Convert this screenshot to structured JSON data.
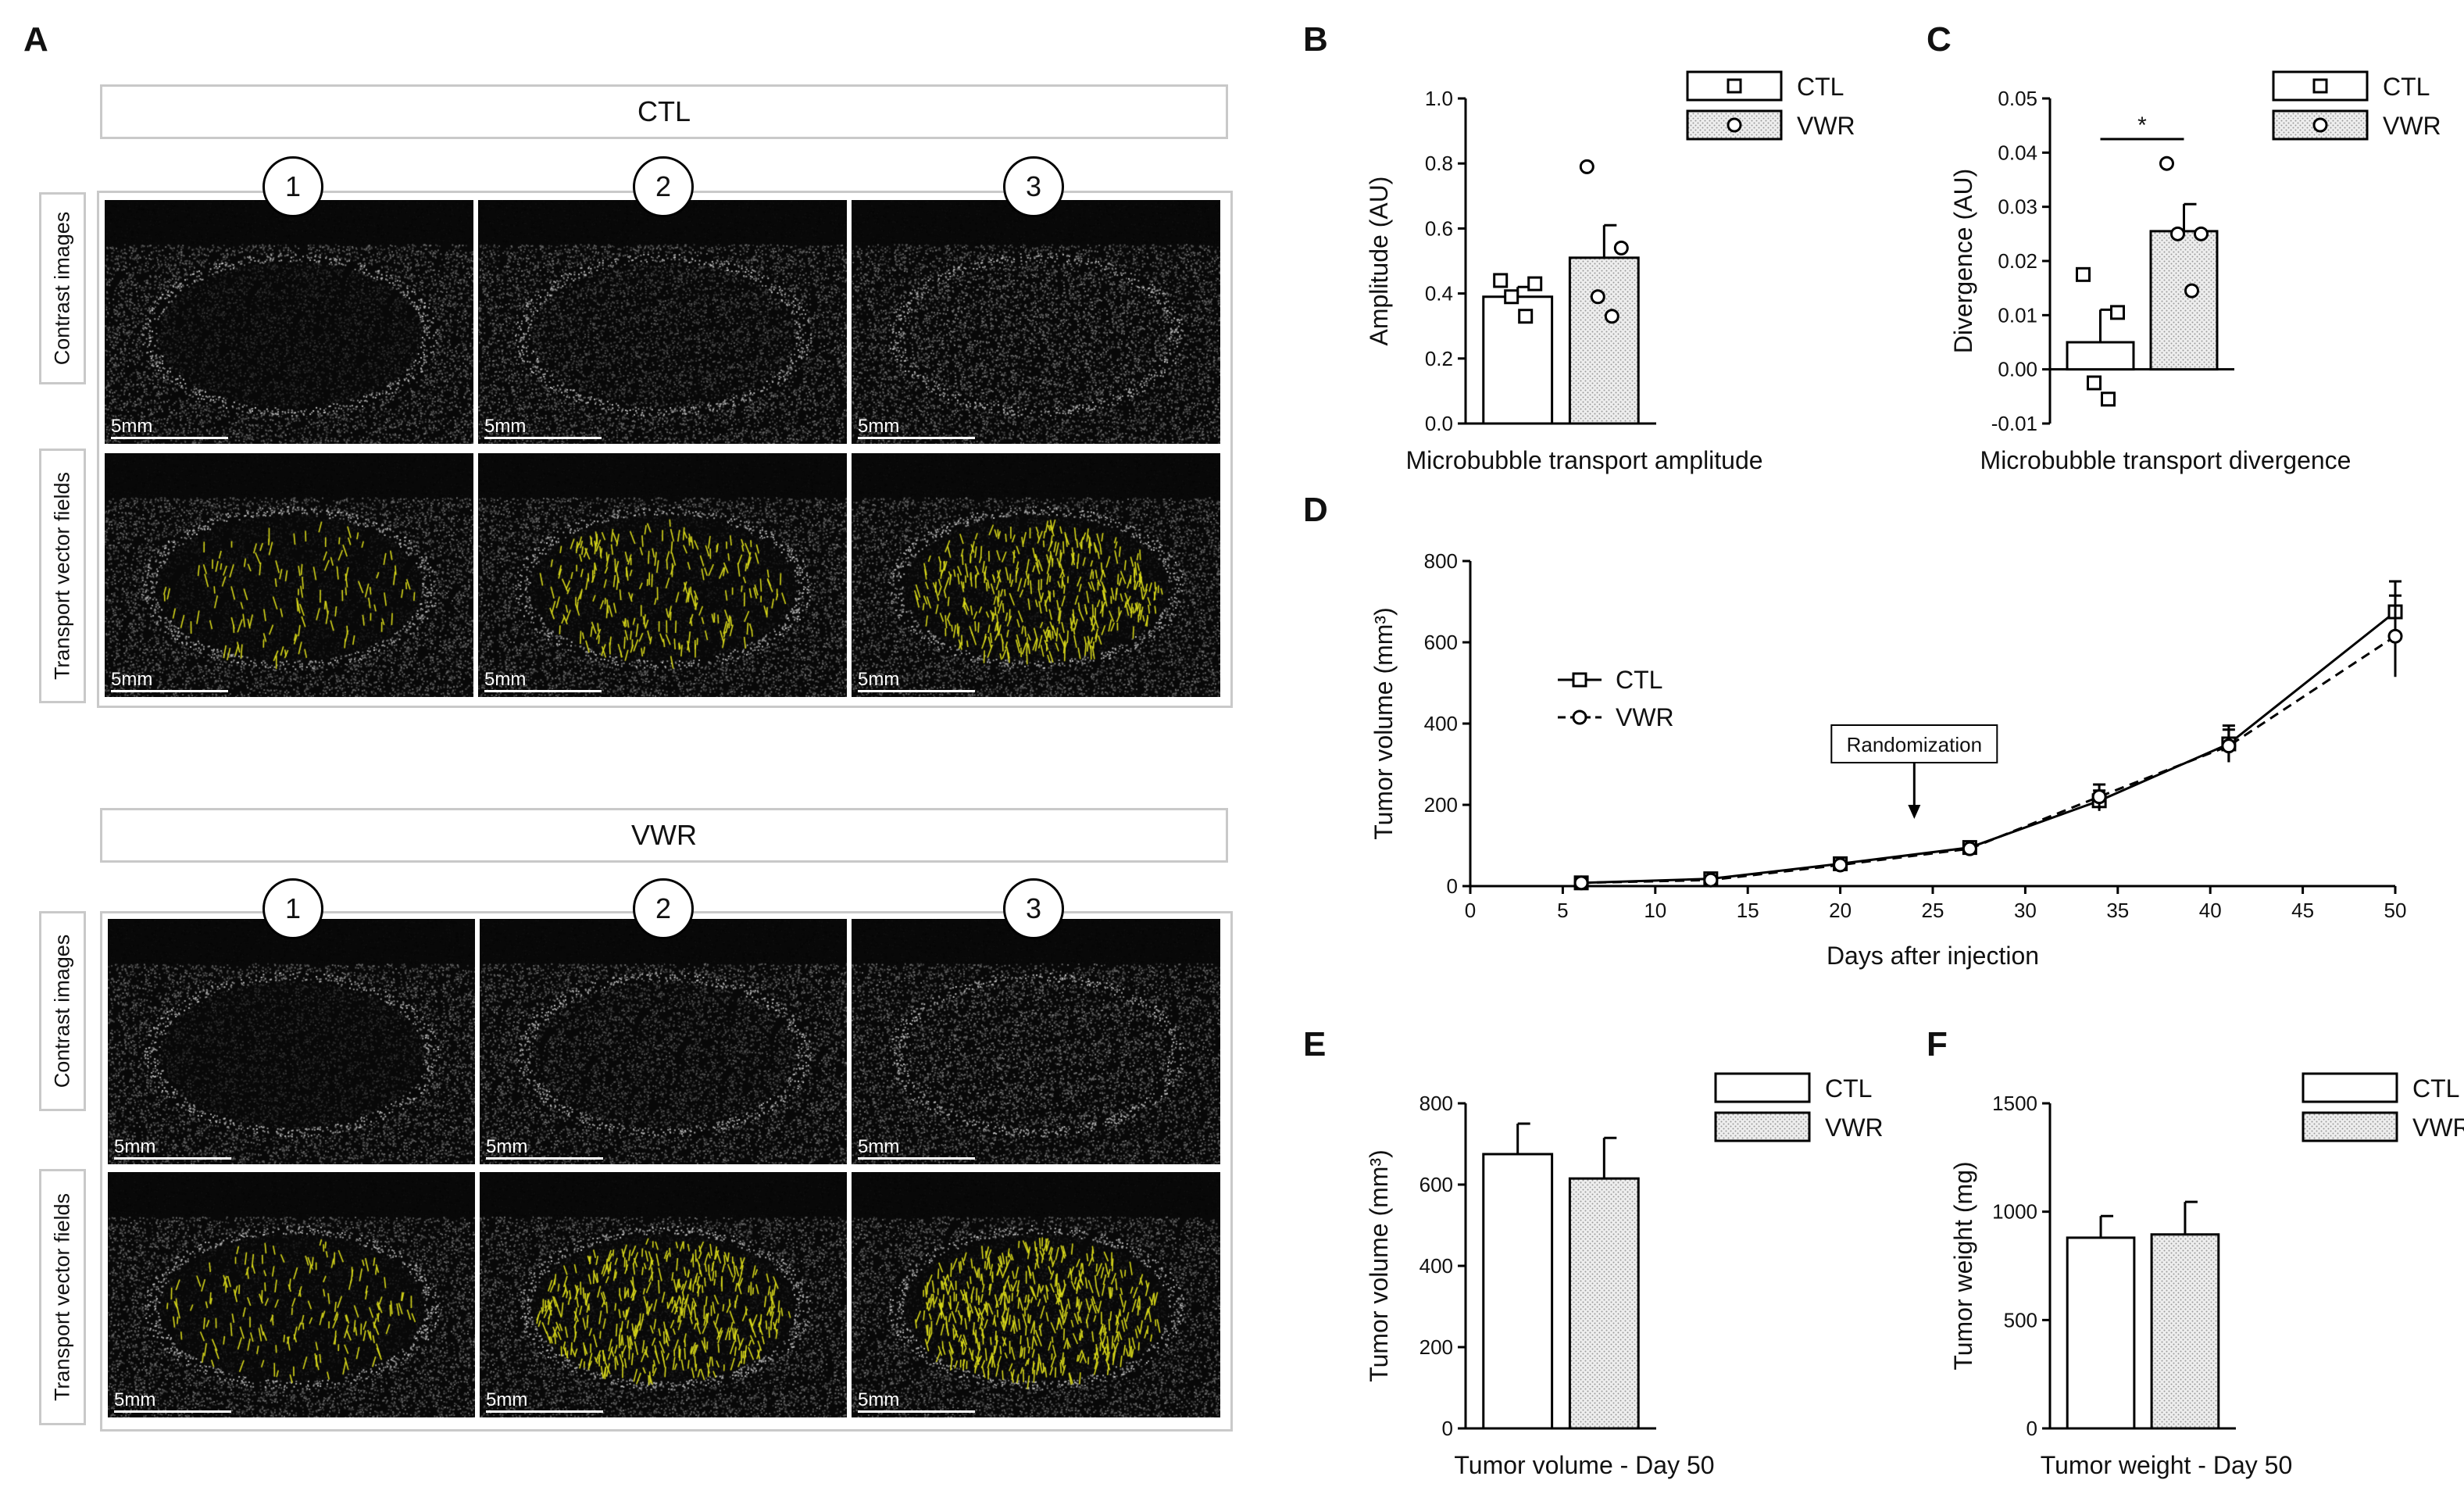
{
  "panels": {
    "A": {
      "letter": "A",
      "groups": [
        {
          "title": "CTL",
          "row_labels": [
            "Contrast images",
            "Transport vector fields"
          ],
          "timepoints": [
            "1",
            "2",
            "3"
          ],
          "scale_label": "5mm",
          "vector_density": [
            0.25,
            0.5,
            0.8
          ]
        },
        {
          "title": "VWR",
          "row_labels": [
            "Contrast images",
            "Transport vector fields"
          ],
          "timepoints": [
            "1",
            "2",
            "3"
          ],
          "scale_label": "5mm",
          "vector_density": [
            0.35,
            0.9,
            1.0
          ]
        }
      ]
    },
    "B": {
      "letter": "B"
    },
    "C": {
      "letter": "C"
    },
    "D": {
      "letter": "D",
      "annotation": "Randomization"
    },
    "E": {
      "letter": "E"
    },
    "F": {
      "letter": "F"
    }
  },
  "colors": {
    "bar_ctl": "#ffffff",
    "bar_vwr": "#d9d9d9",
    "stroke": "#000000",
    "vector": "#d8d81a"
  },
  "chart_data": [
    {
      "id": "B",
      "type": "bar",
      "title": "",
      "xlabel": "Microbubble transport amplitude",
      "ylabel": "Amplitude (AU)",
      "ylim": [
        0,
        1.0
      ],
      "yticks": [
        "0.0",
        "0.2",
        "0.4",
        "0.6",
        "0.8",
        "1.0"
      ],
      "legend_position": "top-right",
      "series": [
        {
          "name": "CTL",
          "mean": 0.39,
          "sem": 0.03,
          "points": [
            0.44,
            0.43,
            0.39,
            0.33
          ],
          "marker": "square"
        },
        {
          "name": "VWR",
          "mean": 0.51,
          "sem": 0.1,
          "points": [
            0.79,
            0.54,
            0.39,
            0.33
          ],
          "marker": "circle"
        }
      ]
    },
    {
      "id": "C",
      "type": "bar",
      "title": "",
      "xlabel": "Microbubble transport divergence",
      "ylabel": "Divergence (AU)",
      "ylim": [
        -0.01,
        0.05
      ],
      "yticks": [
        "-0.01",
        "0.00",
        "0.01",
        "0.02",
        "0.03",
        "0.04",
        "0.05"
      ],
      "legend_position": "top-right",
      "significance": "*",
      "series": [
        {
          "name": "CTL",
          "mean": 0.005,
          "sem": 0.006,
          "points": [
            0.0175,
            0.0105,
            -0.0025,
            -0.0055
          ],
          "marker": "square"
        },
        {
          "name": "VWR",
          "mean": 0.0255,
          "sem": 0.005,
          "points": [
            0.038,
            0.025,
            0.025,
            0.0145
          ],
          "marker": "circle"
        }
      ]
    },
    {
      "id": "D",
      "type": "line",
      "title": "",
      "xlabel": "Days after injection",
      "ylabel": "Tumor volume (mm³)",
      "xlim": [
        0,
        50
      ],
      "ylim": [
        0,
        800
      ],
      "xticks": [
        "0",
        "5",
        "10",
        "15",
        "20",
        "25",
        "30",
        "35",
        "40",
        "45",
        "50"
      ],
      "yticks": [
        "0",
        "200",
        "400",
        "600",
        "800"
      ],
      "legend_position": "upper-left",
      "x": [
        6,
        13,
        20,
        27,
        34,
        41,
        50
      ],
      "series": [
        {
          "name": "CTL",
          "values": [
            8,
            18,
            55,
            95,
            210,
            350,
            675
          ],
          "errors": [
            3,
            5,
            8,
            10,
            25,
            45,
            75
          ],
          "marker": "square",
          "dash": "solid"
        },
        {
          "name": "VWR",
          "values": [
            8,
            15,
            52,
            92,
            220,
            345,
            615
          ],
          "errors": [
            3,
            5,
            8,
            10,
            30,
            40,
            100
          ],
          "marker": "circle",
          "dash": "dashed"
        }
      ],
      "annotation": {
        "text": "Randomization",
        "x": 24
      }
    },
    {
      "id": "E",
      "type": "bar",
      "title": "",
      "xlabel": "Tumor volume - Day 50",
      "ylabel": "Tumor volume (mm³)",
      "ylim": [
        0,
        800
      ],
      "yticks": [
        "0",
        "200",
        "400",
        "600",
        "800"
      ],
      "legend_position": "top-right",
      "series": [
        {
          "name": "CTL",
          "mean": 675,
          "sem": 75
        },
        {
          "name": "VWR",
          "mean": 615,
          "sem": 100
        }
      ]
    },
    {
      "id": "F",
      "type": "bar",
      "title": "",
      "xlabel": "Tumor weight - Day 50",
      "ylabel": "Tumor weight (mg)",
      "ylim": [
        0,
        1500
      ],
      "yticks": [
        "0",
        "500",
        "1000",
        "1500"
      ],
      "legend_position": "top-right",
      "series": [
        {
          "name": "CTL",
          "mean": 880,
          "sem": 100
        },
        {
          "name": "VWR",
          "mean": 895,
          "sem": 150
        }
      ]
    }
  ]
}
